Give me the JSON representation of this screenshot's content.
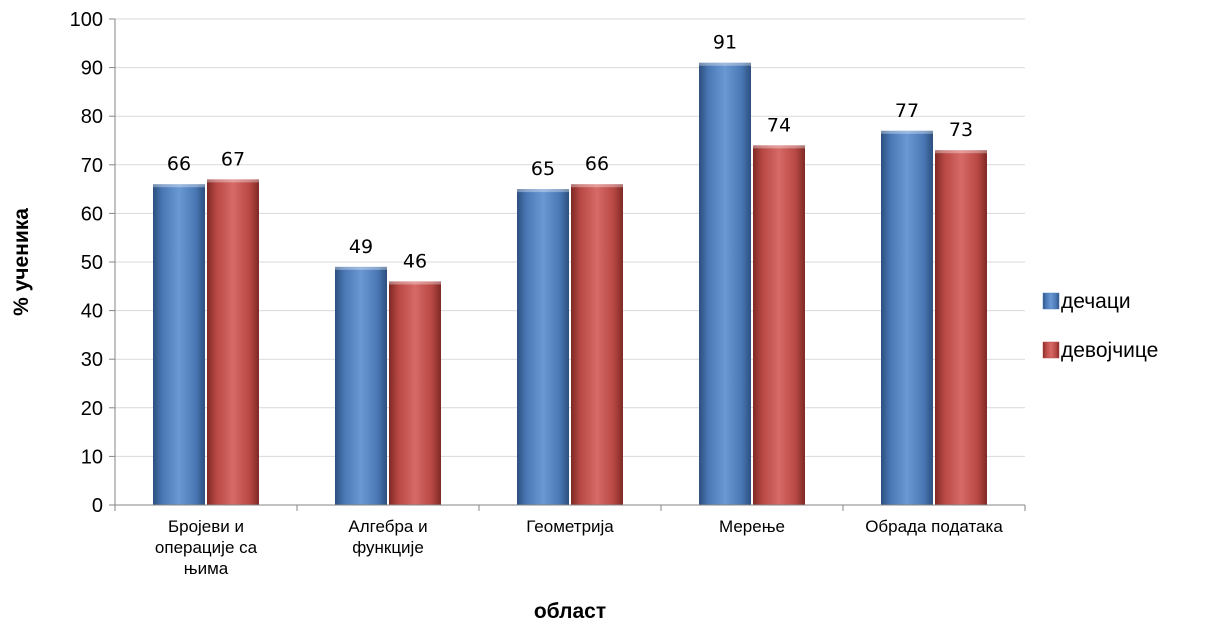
{
  "chart_data": {
    "type": "bar",
    "title": "",
    "xlabel": "област",
    "ylabel": "% ученика",
    "ylim": [
      0,
      100
    ],
    "yticks": [
      0,
      10,
      20,
      30,
      40,
      50,
      60,
      70,
      80,
      90,
      100
    ],
    "categories": [
      [
        "Бројеви и",
        "операције са",
        "њима"
      ],
      [
        "Алгебра и",
        "функције"
      ],
      [
        "Геометрија"
      ],
      [
        "Мерење"
      ],
      [
        "Обрада података"
      ]
    ],
    "series": [
      {
        "name": "дечаци",
        "values": [
          66,
          49,
          65,
          91,
          77
        ],
        "color": "#4F81BD"
      },
      {
        "name": "девојчице",
        "values": [
          67,
          46,
          66,
          74,
          73
        ],
        "color": "#C0504D"
      }
    ],
    "grid": true,
    "data_labels": true,
    "legend_position": "right"
  }
}
